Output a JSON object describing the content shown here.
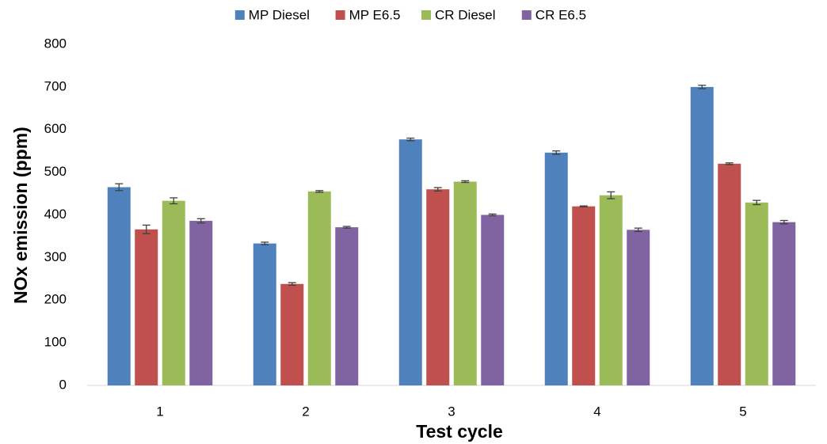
{
  "chart_data": {
    "type": "bar",
    "y_label": "NOx emission (ppm)",
    "x_label": "Test cycle",
    "categories": [
      "1",
      "2",
      "3",
      "4",
      "5"
    ],
    "series": [
      {
        "name": "MP Diesel",
        "color": "#4f81bd",
        "values": [
          465,
          333,
          577,
          546,
          700
        ],
        "errors": [
          8,
          3,
          3,
          4,
          4
        ]
      },
      {
        "name": "MP E6.5",
        "color": "#c0504d",
        "values": [
          366,
          238,
          460,
          420,
          520
        ],
        "errors": [
          10,
          3,
          4,
          1,
          2
        ]
      },
      {
        "name": "CR Diesel",
        "color": "#9bbb59",
        "values": [
          433,
          455,
          478,
          446,
          429
        ],
        "errors": [
          7,
          2,
          2,
          8,
          5
        ]
      },
      {
        "name": "CR E6.5",
        "color": "#8064a2",
        "values": [
          386,
          371,
          400,
          365,
          383
        ],
        "errors": [
          5,
          2,
          2,
          4,
          4
        ]
      }
    ],
    "ylim": [
      0,
      800
    ],
    "yticks": [
      0,
      100,
      200,
      300,
      400,
      500,
      600,
      700,
      800
    ],
    "legend": "top"
  }
}
